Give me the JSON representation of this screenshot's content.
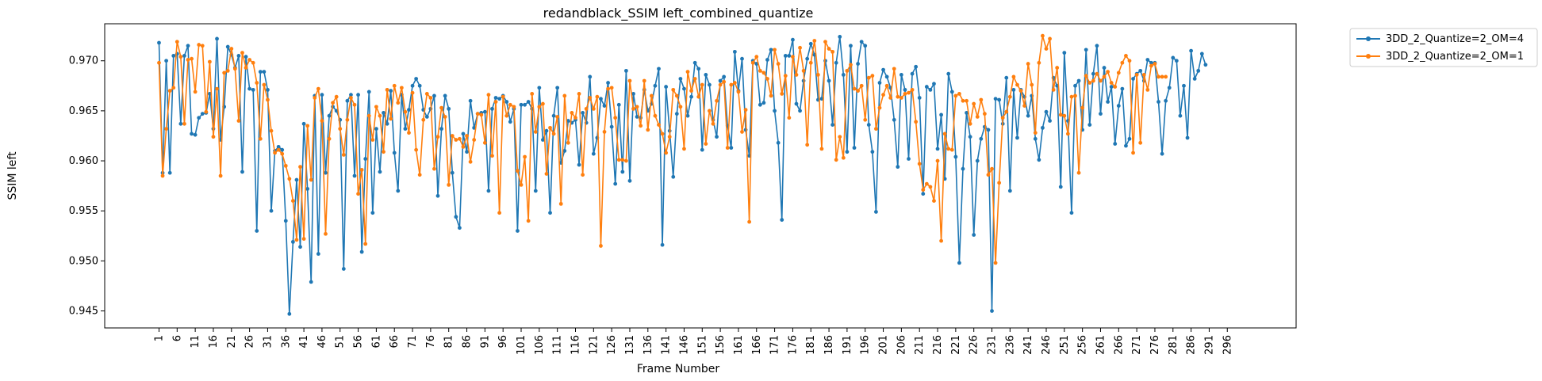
{
  "chart_data": {
    "type": "line",
    "title": "redandblack_SSIM left_combined_quantize",
    "xlabel": "Frame Number",
    "ylabel": "SSIM left",
    "xlim": [
      -14,
      315
    ],
    "ylim": [
      0.9433,
      0.9737
    ],
    "x_ticks": [
      1,
      6,
      11,
      16,
      21,
      26,
      31,
      36,
      41,
      46,
      51,
      56,
      61,
      66,
      71,
      76,
      81,
      86,
      91,
      96,
      101,
      106,
      111,
      116,
      121,
      126,
      131,
      136,
      141,
      146,
      151,
      156,
      161,
      166,
      171,
      176,
      181,
      186,
      191,
      196,
      201,
      206,
      211,
      216,
      221,
      226,
      231,
      236,
      241,
      246,
      251,
      256,
      261,
      266,
      271,
      276,
      281,
      286,
      291,
      296
    ],
    "y_ticks": [
      0.945,
      0.95,
      0.955,
      0.96,
      0.965,
      0.97
    ],
    "y_tick_labels": [
      "0.945",
      "0.950",
      "0.955",
      "0.960",
      "0.965",
      "0.970"
    ],
    "grid": false,
    "legend_placement": "outside-top-right",
    "x_start": 1,
    "series": [
      {
        "name": "3DD_2_Quantize=2_OM=4",
        "color": "#1f77b4",
        "values": [
          0.9718,
          0.9588,
          0.97,
          0.9588,
          0.9705,
          0.9707,
          0.9637,
          0.9705,
          0.9715,
          0.9627,
          0.9626,
          0.9643,
          0.9647,
          0.9648,
          0.9667,
          0.9632,
          0.9722,
          0.9621,
          0.9654,
          0.9714,
          0.9706,
          0.9693,
          0.9705,
          0.9589,
          0.9704,
          0.9672,
          0.9671,
          0.953,
          0.9689,
          0.9689,
          0.9671,
          0.955,
          0.961,
          0.9614,
          0.9611,
          0.954,
          0.9447,
          0.9519,
          0.9581,
          0.9514,
          0.9637,
          0.9572,
          0.9479,
          0.9665,
          0.9507,
          0.9666,
          0.9588,
          0.9645,
          0.9654,
          0.965,
          0.9641,
          0.9492,
          0.966,
          0.9666,
          0.9585,
          0.9666,
          0.9509,
          0.9602,
          0.9669,
          0.9548,
          0.9632,
          0.9589,
          0.9648,
          0.9637,
          0.967,
          0.9608,
          0.957,
          0.9666,
          0.9632,
          0.9651,
          0.9675,
          0.9682,
          0.9675,
          0.9651,
          0.9644,
          0.9652,
          0.9665,
          0.9565,
          0.9632,
          0.9665,
          0.9652,
          0.9588,
          0.9544,
          0.9533,
          0.9627,
          0.9609,
          0.966,
          0.9633,
          0.9647,
          0.9648,
          0.9649,
          0.957,
          0.9652,
          0.9663,
          0.9662,
          0.9665,
          0.9659,
          0.9639,
          0.9652,
          0.953,
          0.9656,
          0.9656,
          0.9659,
          0.9652,
          0.957,
          0.9673,
          0.9621,
          0.963,
          0.9548,
          0.9645,
          0.9673,
          0.9598,
          0.961,
          0.964,
          0.9638,
          0.9641,
          0.9596,
          0.9648,
          0.9638,
          0.9684,
          0.9607,
          0.9623,
          0.9662,
          0.9655,
          0.9678,
          0.9634,
          0.9577,
          0.9656,
          0.9589,
          0.969,
          0.958,
          0.9667,
          0.9644,
          0.9643,
          0.9671,
          0.965,
          0.9657,
          0.9675,
          0.9692,
          0.9516,
          0.9674,
          0.963,
          0.9584,
          0.9647,
          0.9682,
          0.9672,
          0.9645,
          0.9664,
          0.9698,
          0.9692,
          0.9611,
          0.9686,
          0.9676,
          0.9641,
          0.9624,
          0.968,
          0.9684,
          0.9635,
          0.9613,
          0.9709,
          0.967,
          0.9702,
          0.9631,
          0.9605,
          0.97,
          0.9697,
          0.9656,
          0.9658,
          0.9701,
          0.9711,
          0.965,
          0.9618,
          0.9541,
          0.9705,
          0.9705,
          0.9721,
          0.9657,
          0.965,
          0.968,
          0.9702,
          0.9717,
          0.9706,
          0.9661,
          0.9662,
          0.97,
          0.968,
          0.9636,
          0.9698,
          0.9724,
          0.9686,
          0.9609,
          0.9715,
          0.9613,
          0.9697,
          0.9719,
          0.9715,
          0.9636,
          0.9609,
          0.9549,
          0.9678,
          0.9691,
          0.9684,
          0.9673,
          0.9641,
          0.9594,
          0.9686,
          0.9671,
          0.9602,
          0.9687,
          0.9694,
          0.9663,
          0.9567,
          0.9674,
          0.9671,
          0.9677,
          0.9612,
          0.9646,
          0.9582,
          0.9687,
          0.9669,
          0.9604,
          0.9498,
          0.9592,
          0.9648,
          0.9624,
          0.9526,
          0.96,
          0.9622,
          0.9634,
          0.9631,
          0.945,
          0.9662,
          0.9661,
          0.9637,
          0.9683,
          0.957,
          0.9671,
          0.9623,
          0.9671,
          0.9664,
          0.9645,
          0.9665,
          0.9622,
          0.9601,
          0.9633,
          0.9649,
          0.964,
          0.9683,
          0.9675,
          0.9574,
          0.9708,
          0.964,
          0.9548,
          0.9675,
          0.968,
          0.9631,
          0.9711,
          0.9636,
          0.9687,
          0.9715,
          0.9647,
          0.9693,
          0.9659,
          0.9674,
          0.9617,
          0.9655,
          0.9672,
          0.9615,
          0.9622,
          0.9682,
          0.9687,
          0.969,
          0.968,
          0.9701,
          0.9698,
          0.9698,
          0.9659,
          0.9607,
          0.966,
          0.9673,
          0.9703,
          0.97,
          0.9645,
          0.9675,
          0.9623,
          0.971,
          0.9682,
          0.969,
          0.9707,
          0.9696
        ]
      },
      {
        "name": "3DD_2_Quantize=2_OM=1",
        "color": "#ff7f0e",
        "values": [
          0.9698,
          0.9585,
          0.9632,
          0.967,
          0.9673,
          0.9719,
          0.9704,
          0.9637,
          0.9701,
          0.9702,
          0.9669,
          0.9716,
          0.9715,
          0.9649,
          0.9699,
          0.9624,
          0.9672,
          0.9585,
          0.9688,
          0.969,
          0.9712,
          0.9692,
          0.964,
          0.9708,
          0.9693,
          0.9701,
          0.9698,
          0.9678,
          0.9622,
          0.9676,
          0.9661,
          0.963,
          0.9608,
          0.9611,
          0.9607,
          0.9595,
          0.9582,
          0.956,
          0.9521,
          0.9594,
          0.9522,
          0.9635,
          0.9581,
          0.9663,
          0.9672,
          0.964,
          0.9527,
          0.9622,
          0.9658,
          0.9664,
          0.9632,
          0.9606,
          0.9641,
          0.9663,
          0.9656,
          0.9567,
          0.9591,
          0.9517,
          0.9645,
          0.9621,
          0.9654,
          0.9645,
          0.9609,
          0.9671,
          0.9642,
          0.9675,
          0.9658,
          0.9673,
          0.9649,
          0.9628,
          0.9668,
          0.9611,
          0.9586,
          0.9641,
          0.9667,
          0.9663,
          0.9592,
          0.9624,
          0.9653,
          0.9644,
          0.9576,
          0.9625,
          0.9621,
          0.9622,
          0.9614,
          0.9625,
          0.9599,
          0.9621,
          0.9647,
          0.9646,
          0.9618,
          0.9666,
          0.9605,
          0.9659,
          0.9548,
          0.9664,
          0.9645,
          0.9656,
          0.9654,
          0.959,
          0.9576,
          0.9604,
          0.954,
          0.9667,
          0.9629,
          0.9654,
          0.9657,
          0.9587,
          0.9633,
          0.9627,
          0.9644,
          0.9557,
          0.9665,
          0.9618,
          0.9648,
          0.9643,
          0.9667,
          0.9586,
          0.9652,
          0.9663,
          0.9652,
          0.9664,
          0.9515,
          0.9629,
          0.9672,
          0.9673,
          0.9643,
          0.9601,
          0.9601,
          0.96,
          0.968,
          0.9652,
          0.9654,
          0.9635,
          0.968,
          0.9631,
          0.9665,
          0.9645,
          0.9636,
          0.9627,
          0.9608,
          0.9624,
          0.9671,
          0.9665,
          0.9654,
          0.9612,
          0.9689,
          0.967,
          0.9682,
          0.9664,
          0.9676,
          0.9617,
          0.965,
          0.9637,
          0.966,
          0.9676,
          0.9679,
          0.9613,
          0.9676,
          0.9678,
          0.9669,
          0.9629,
          0.9651,
          0.9539,
          0.9698,
          0.9704,
          0.969,
          0.9688,
          0.9682,
          0.9665,
          0.9711,
          0.9697,
          0.9667,
          0.9685,
          0.9643,
          0.9704,
          0.9686,
          0.9713,
          0.969,
          0.9616,
          0.9698,
          0.972,
          0.9686,
          0.9612,
          0.9719,
          0.9712,
          0.9709,
          0.9601,
          0.9624,
          0.9603,
          0.969,
          0.9696,
          0.9672,
          0.967,
          0.9675,
          0.9641,
          0.9683,
          0.9685,
          0.9632,
          0.9653,
          0.9666,
          0.9675,
          0.9663,
          0.9692,
          0.9664,
          0.9663,
          0.9667,
          0.9668,
          0.9671,
          0.9639,
          0.9597,
          0.9571,
          0.9577,
          0.9574,
          0.956,
          0.96,
          0.952,
          0.9627,
          0.9612,
          0.9611,
          0.9665,
          0.9667,
          0.966,
          0.966,
          0.9637,
          0.9657,
          0.9644,
          0.9661,
          0.9647,
          0.9586,
          0.9592,
          0.9498,
          0.9578,
          0.9643,
          0.9649,
          0.9664,
          0.9684,
          0.9676,
          0.967,
          0.9655,
          0.9697,
          0.9676,
          0.9628,
          0.9698,
          0.9725,
          0.9712,
          0.9722,
          0.9671,
          0.9693,
          0.9646,
          0.9645,
          0.9627,
          0.9664,
          0.9665,
          0.9588,
          0.9653,
          0.9685,
          0.9678,
          0.968,
          0.9687,
          0.968,
          0.9684,
          0.9689,
          0.9678,
          0.9674,
          0.9688,
          0.9698,
          0.9705,
          0.97,
          0.9608,
          0.9686,
          0.9618,
          0.9686,
          0.9671,
          0.9695,
          0.9697,
          0.9684,
          0.9684,
          0.9684
        ]
      }
    ]
  }
}
